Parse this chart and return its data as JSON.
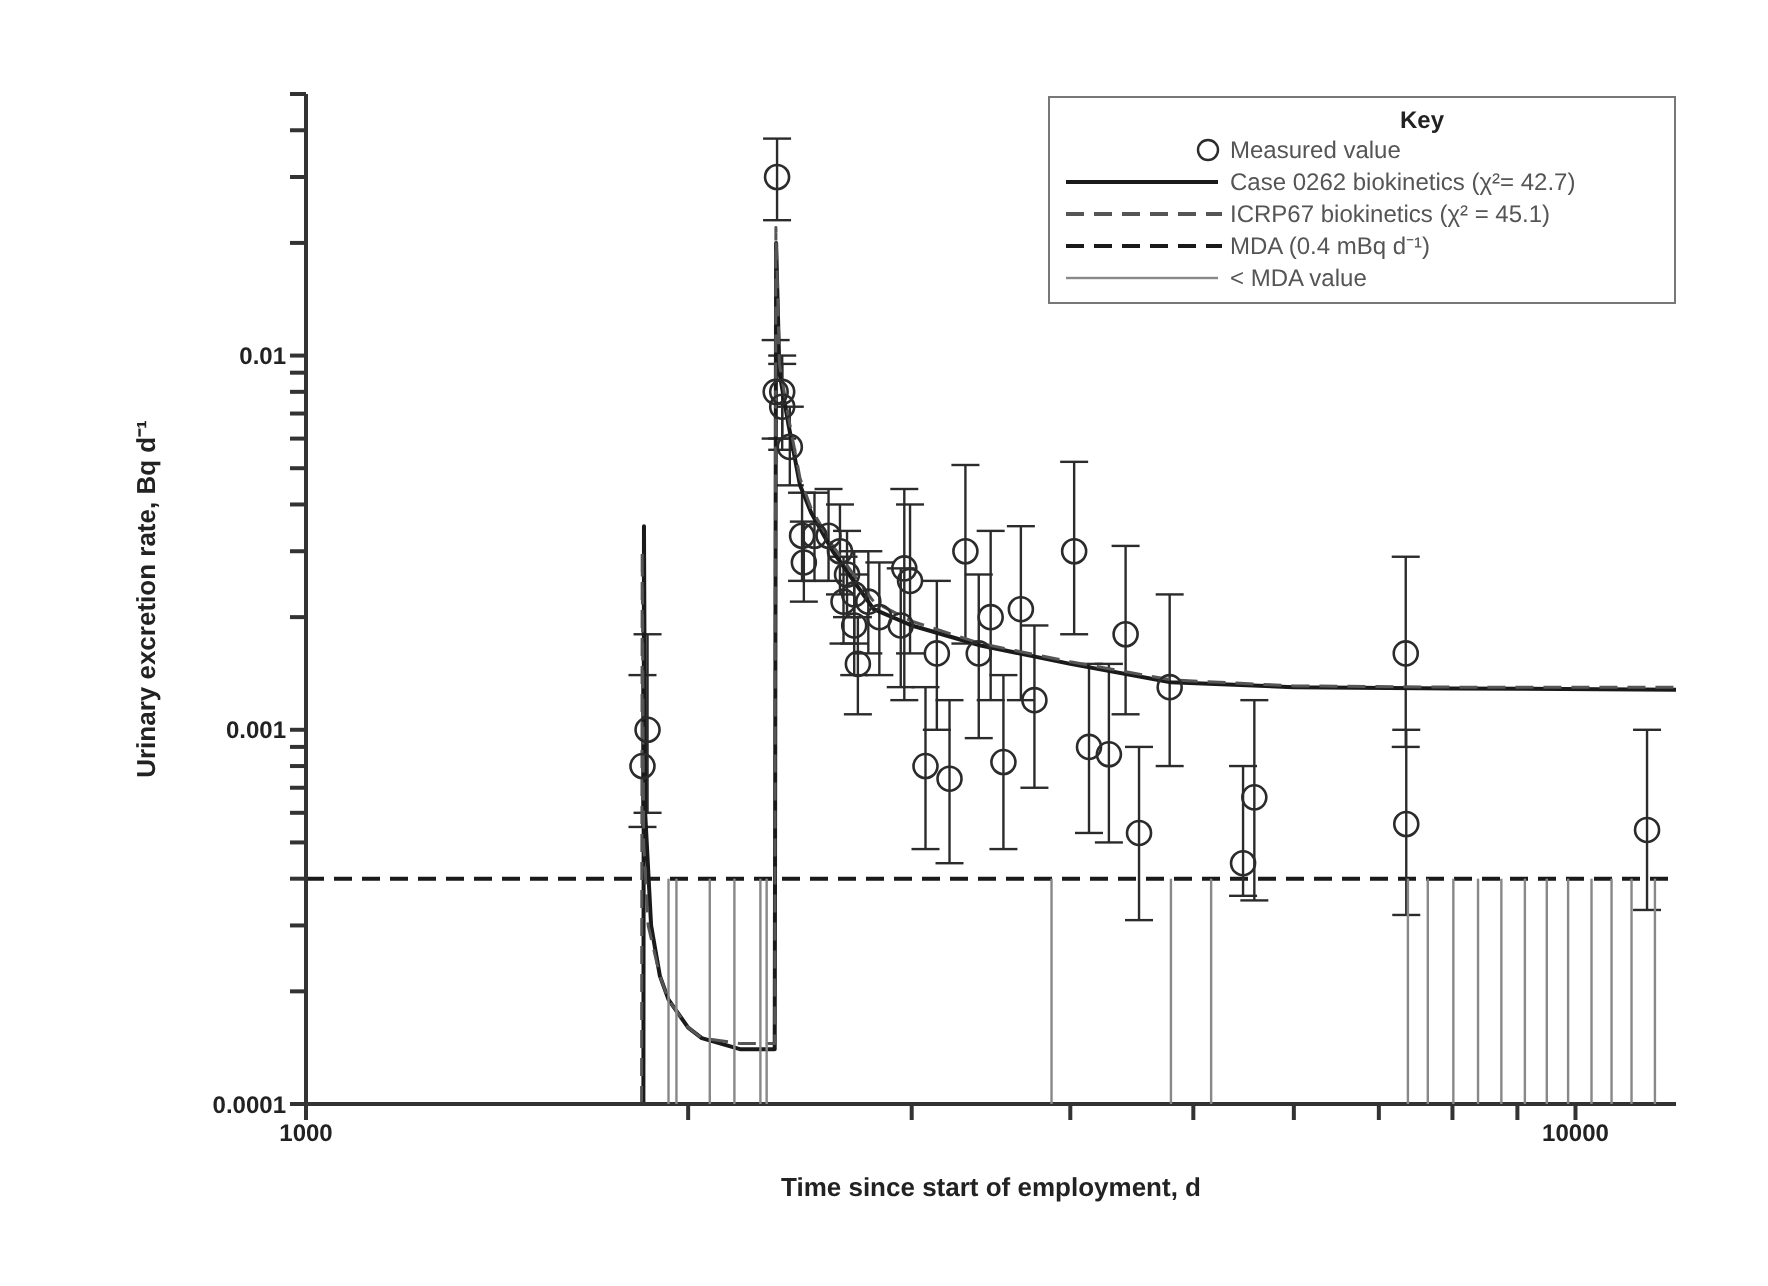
{
  "chart_data": {
    "type": "scatter",
    "xlabel": "Time since start of employment, d",
    "ylabel": "Urinary excretion rate, Bq d⁻¹",
    "legend_title": "Key",
    "legend": "top right",
    "log": "xy",
    "xlim": [
      1000,
      12000
    ],
    "xticks": [
      1000,
      {
        "value": 2000,
        "label": null
      },
      {
        "value": 3000,
        "label": null
      },
      {
        "value": 4000,
        "label": null
      },
      {
        "value": 5000,
        "label": null
      },
      {
        "value": 6000,
        "label": null
      },
      {
        "value": 7000,
        "label": null
      },
      {
        "value": 8000,
        "label": null
      },
      {
        "value": 9000,
        "label": null
      },
      10000
    ],
    "ylim": [
      0.0001,
      0.05
    ],
    "yticks": [
      0.0001,
      {
        "value": 0.0002,
        "label": null
      },
      {
        "value": 0.0003,
        "label": null
      },
      {
        "value": 0.0004,
        "label": null
      },
      {
        "value": 0.0005,
        "label": null
      },
      {
        "value": 0.0006,
        "label": null
      },
      {
        "value": 0.0007,
        "label": null
      },
      {
        "value": 0.0008,
        "label": null
      },
      {
        "value": 0.0009,
        "label": null
      },
      0.001,
      {
        "value": 0.002,
        "label": null
      },
      {
        "value": 0.003,
        "label": null
      },
      {
        "value": 0.004,
        "label": null
      },
      {
        "value": 0.005,
        "label": null
      },
      {
        "value": 0.006,
        "label": null
      },
      {
        "value": 0.007,
        "label": null
      },
      {
        "value": 0.008,
        "label": null
      },
      {
        "value": 0.009,
        "label": null
      },
      0.01,
      {
        "value": 0.02,
        "label": null
      },
      {
        "value": 0.03,
        "label": null
      },
      {
        "value": 0.04,
        "label": null
      },
      {
        "value": 0.05,
        "label": null
      }
    ],
    "ref_lines": [
      {
        "axis": "y",
        "value": 0.0004,
        "label": "MDA (0.4 mBq d⁻¹)",
        "color": "#1a1a1a",
        "line_style": "dashed"
      }
    ],
    "series": [
      {
        "name": "Measured value",
        "marker": "circle",
        "color": "#2b2b2b",
        "x": [
          1841,
          1858,
          2350,
          2344,
          2372,
          2372,
          2405,
          2459,
          2467,
          2515,
          2580,
          2634,
          2668,
          2651,
          2703,
          2703,
          2721,
          2773,
          2829,
          2960,
          2991,
          2941,
          3140,
          3076,
          3213,
          3307,
          3388,
          3462,
          3543,
          3657,
          3748,
          4028,
          4138,
          4290,
          4422,
          4531,
          4790,
          5472,
          5585,
          7350,
          7357,
          11386
        ],
        "values": [
          0.0008,
          0.001,
          0.03,
          0.008,
          0.008,
          0.0073,
          0.0057,
          0.0033,
          0.0028,
          0.0033,
          0.0033,
          0.003,
          0.0026,
          0.0022,
          0.0023,
          0.0019,
          0.0015,
          0.0022,
          0.002,
          0.0027,
          0.0025,
          0.0019,
          0.0016,
          0.0008,
          0.00074,
          0.003,
          0.0016,
          0.002,
          0.00082,
          0.0021,
          0.0012,
          0.003,
          0.0009,
          0.00086,
          0.0018,
          0.00053,
          0.0013,
          0.00044,
          0.00066,
          0.0016,
          0.00056,
          0.00054
        ],
        "errors": [
          [
            0.00055,
            0.0014
          ],
          [
            0.0006,
            0.0018
          ],
          [
            0.023,
            0.038
          ],
          [
            0.006,
            0.011
          ],
          [
            0.006,
            0.01
          ],
          [
            0.0056,
            0.0095
          ],
          [
            0.0045,
            0.0073
          ],
          [
            0.0025,
            0.0043
          ],
          [
            0.0022,
            0.0036
          ],
          [
            0.0025,
            0.0043
          ],
          [
            0.0025,
            0.0044
          ],
          [
            0.0023,
            0.004
          ],
          [
            0.002,
            0.0034
          ],
          [
            0.0017,
            0.0029
          ],
          [
            0.0017,
            0.003
          ],
          [
            0.0014,
            0.0026
          ],
          [
            0.0011,
            0.002
          ],
          [
            0.0016,
            0.003
          ],
          [
            0.0014,
            0.0028
          ],
          [
            0.0012,
            0.0044
          ],
          [
            0.0016,
            0.004
          ],
          [
            0.0013,
            0.0027
          ],
          [
            0.001,
            0.0025
          ],
          [
            0.00048,
            0.0013
          ],
          [
            0.00044,
            0.0012
          ],
          [
            0.0017,
            0.0051
          ],
          [
            0.00095,
            0.0026
          ],
          [
            0.0012,
            0.0034
          ],
          [
            0.00048,
            0.0014
          ],
          [
            0.0012,
            0.0035
          ],
          [
            0.0007,
            0.0019
          ],
          [
            0.0018,
            0.0052
          ],
          [
            0.00053,
            0.0015
          ],
          [
            0.0005,
            0.0015
          ],
          [
            0.0011,
            0.0031
          ],
          [
            0.00031,
            0.0009
          ],
          [
            0.0008,
            0.0023
          ],
          [
            0.00036,
            0.0008
          ],
          [
            0.00035,
            0.0012
          ],
          [
            0.0009,
            0.0029
          ],
          [
            0.00032,
            0.001
          ],
          [
            0.00033,
            0.001
          ]
        ]
      },
      {
        "name": "Case 0262 biokinetics (χ²= 42.7)",
        "type": "line",
        "color": "#1a1a1a",
        "line_style": "solid",
        "x": [
          1844,
          1846,
          1850,
          1870,
          1900,
          1930,
          2000,
          2050,
          2200,
          2340,
          2346,
          2360,
          2400,
          2450,
          2500,
          2600,
          2700,
          2800,
          3000,
          3400,
          4000,
          4800,
          6000,
          8000,
          12000
        ],
        "values": [
          0.0001,
          0.0035,
          0.0006,
          0.0003,
          0.00022,
          0.00019,
          0.00016,
          0.00015,
          0.00014,
          0.00014,
          0.02,
          0.009,
          0.0065,
          0.0045,
          0.0038,
          0.003,
          0.0025,
          0.0021,
          0.0019,
          0.00168,
          0.0015,
          0.00134,
          0.0013,
          0.00129,
          0.00128
        ]
      },
      {
        "name": "ICRP67 biokinetics (χ² = 45.1)",
        "type": "line",
        "color": "#555555",
        "line_style": "dashed",
        "x": [
          1838,
          1840,
          1845,
          1860,
          1900,
          1930,
          2000,
          2050,
          2200,
          2340,
          2345,
          2360,
          2400,
          2450,
          2500,
          2600,
          2700,
          2800,
          3000,
          3400,
          4000,
          4800,
          6000,
          8000,
          12000
        ],
        "values": [
          0.0001,
          0.003,
          0.0005,
          0.0003,
          0.00022,
          0.00019,
          0.00016,
          0.00015,
          0.000145,
          0.000145,
          0.022,
          0.0095,
          0.0068,
          0.0047,
          0.0039,
          0.0031,
          0.0026,
          0.0022,
          0.00195,
          0.0017,
          0.00152,
          0.00136,
          0.00131,
          0.0013,
          0.0013
        ]
      },
      {
        "name": "< MDA value",
        "type": "bar",
        "color": "#888888",
        "x": [
          1930,
          1958,
          2080,
          2175,
          2280,
          2306,
          3866,
          4801,
          5164,
          7379,
          7650,
          8013,
          8380,
          8742,
          9123,
          9493,
          9867,
          10295,
          10676,
          11070,
          11550
        ],
        "values": [
          0.0004,
          0.0004,
          0.0004,
          0.0004,
          0.0004,
          0.0004,
          0.0004,
          0.0004,
          0.0004,
          0.0004,
          0.0004,
          0.0004,
          0.0004,
          0.0004,
          0.0004,
          0.0004,
          0.0004,
          0.0004,
          0.0004,
          0.0004,
          0.0004
        ]
      }
    ]
  }
}
